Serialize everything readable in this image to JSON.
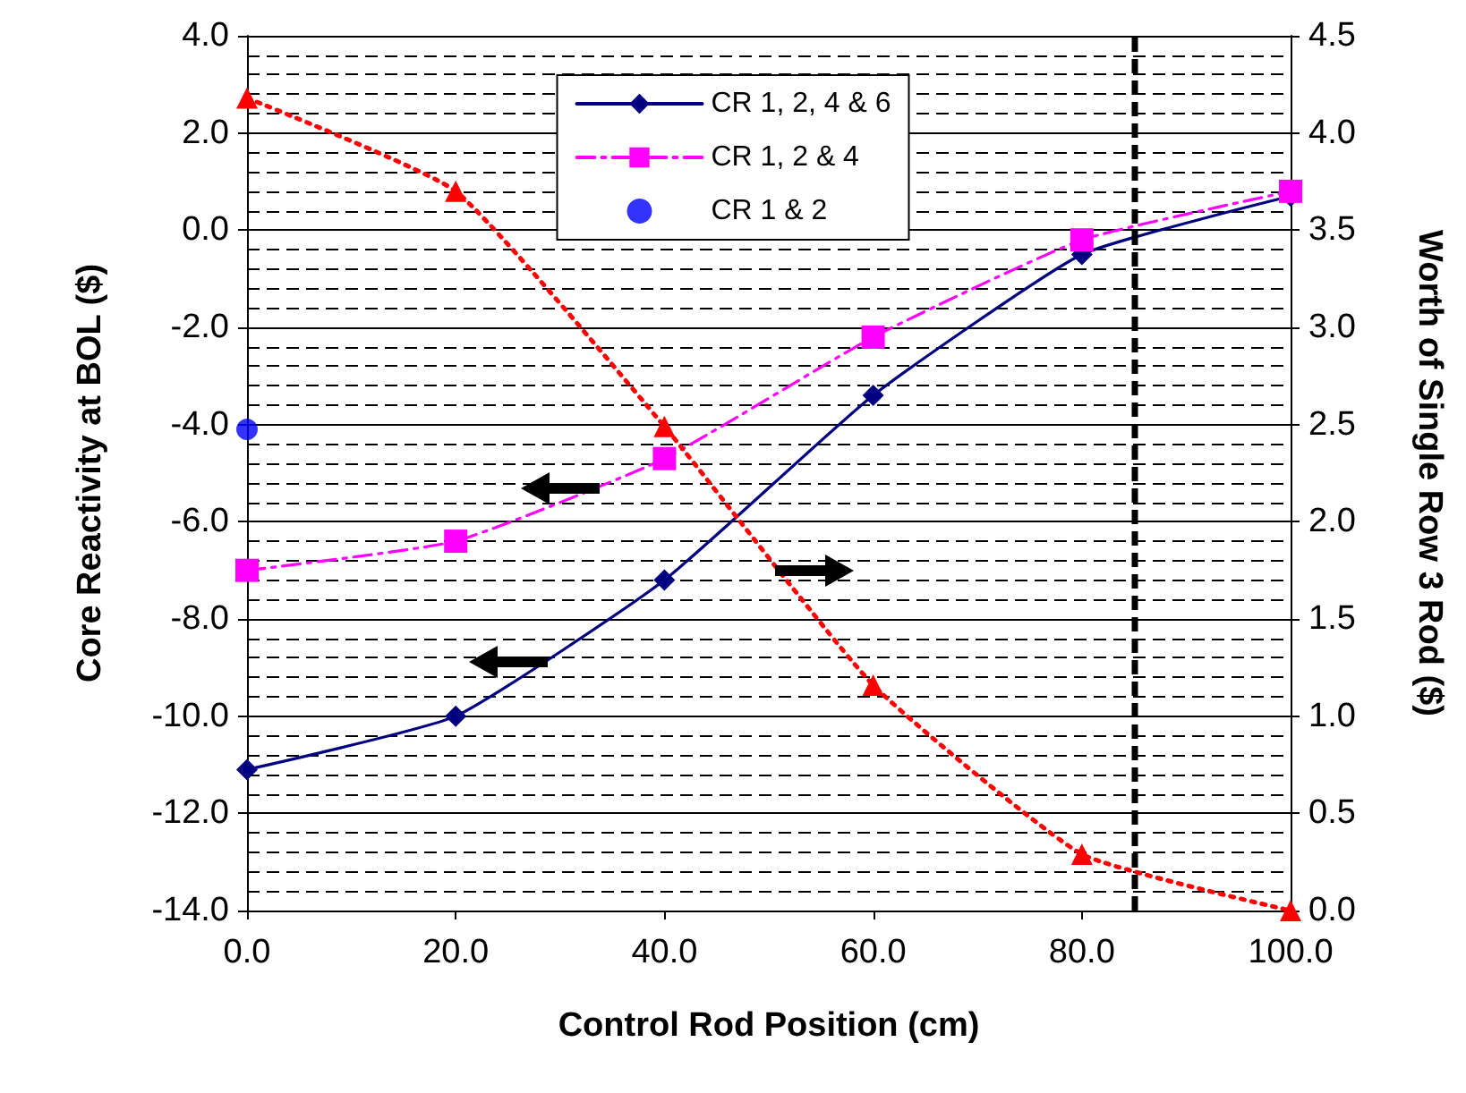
{
  "chart_data": {
    "type": "line",
    "xlabel": "Control Rod Position (cm)",
    "ylabel": "Core Reactivity at BOL ($)",
    "y2label": "Worth of Single Row 3 Rod ($)",
    "x": [
      0,
      20,
      40,
      60,
      80,
      100
    ],
    "series": [
      {
        "name": "CR 1, 2, 4 & 6",
        "color": "#000080",
        "marker": "diamond",
        "line_style": "solid",
        "values": [
          -11.1,
          -10.0,
          -7.2,
          -3.4,
          -0.5,
          0.7
        ]
      },
      {
        "name": "CR 1, 2 & 4",
        "color": "#ff00ff",
        "marker": "square",
        "line_style": "dashdot",
        "values": [
          -7.0,
          -6.4,
          -4.7,
          -2.2,
          -0.2,
          0.8
        ]
      },
      {
        "name": "CR 1 & 2",
        "color": "#0000ff",
        "type": "scatter",
        "marker": "circle",
        "x": [
          0
        ],
        "values": [
          -4.1
        ]
      },
      {
        "color": "#ff0000",
        "marker": "triangle",
        "line_style": "dotted",
        "axis": "y2",
        "values": [
          4.18,
          3.7,
          2.49,
          1.16,
          0.29,
          0.0
        ]
      }
    ],
    "xlim": [
      0,
      100
    ],
    "xticks": [
      {
        "value": 0,
        "label": "0.0"
      },
      {
        "value": 20,
        "label": "20.0"
      },
      {
        "value": 40,
        "label": "40.0"
      },
      {
        "value": 60,
        "label": "60.0"
      },
      {
        "value": 80,
        "label": "80.0"
      },
      {
        "value": 100,
        "label": "100.0"
      }
    ],
    "ylim": [
      -14,
      4
    ],
    "yticks": [
      {
        "value": -14,
        "label": "-14.0"
      },
      {
        "value": -12,
        "label": "-12.0"
      },
      {
        "value": -10,
        "label": "-10.0"
      },
      {
        "value": -8,
        "label": "-8.0"
      },
      {
        "value": -6,
        "label": "-6.0"
      },
      {
        "value": -4,
        "label": "-4.0"
      },
      {
        "value": -2,
        "label": "-2.0"
      },
      {
        "value": 0,
        "label": "0.0"
      },
      {
        "value": 2,
        "label": "2.0"
      },
      {
        "value": 4,
        "label": "4.0"
      }
    ],
    "y2lim": [
      0,
      4.5
    ],
    "y2ticks": [
      {
        "value": 0,
        "label": "0.0"
      },
      {
        "value": 0.5,
        "label": "0.5"
      },
      {
        "value": 1,
        "label": "1.0"
      },
      {
        "value": 1.5,
        "label": "1.5"
      },
      {
        "value": 2,
        "label": "2.0"
      },
      {
        "value": 2.5,
        "label": "2.5"
      },
      {
        "value": 3,
        "label": "3.0"
      },
      {
        "value": 3.5,
        "label": "3.5"
      },
      {
        "value": 4,
        "label": "4.0"
      },
      {
        "value": 4.5,
        "label": "4.5"
      }
    ],
    "ref_lines": [
      {
        "axis": "x",
        "value": 85,
        "color": "#000000",
        "line_style": "dashed"
      }
    ],
    "grid": "y",
    "legend": "top"
  }
}
